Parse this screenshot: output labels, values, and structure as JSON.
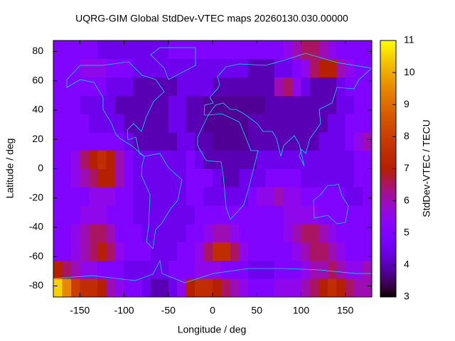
{
  "chart_data": {
    "type": "heatmap",
    "title": "UQRG-GIM Global StdDev-VTEC maps 20260130.030.00000",
    "xlabel": "Longitude / deg",
    "ylabel": "Latitude / deg",
    "colorbar_label": "StdDev-VTEC / TECU",
    "colormap": "gnuplot",
    "xlim": [
      -180,
      180
    ],
    "ylim": [
      -87.5,
      87.5
    ],
    "clim": [
      3,
      11
    ],
    "xticks": [
      -150,
      -100,
      -50,
      0,
      50,
      100,
      150
    ],
    "yticks": [
      -80,
      -60,
      -40,
      -20,
      0,
      20,
      40,
      60,
      80
    ],
    "cticks": [
      3,
      4,
      5,
      6,
      7,
      8,
      9,
      10,
      11
    ],
    "xbins": [
      -180,
      -170,
      -160,
      -150,
      -140,
      -130,
      -120,
      -110,
      -100,
      -90,
      -80,
      -70,
      -60,
      -50,
      -40,
      -30,
      -20,
      -10,
      0,
      10,
      20,
      30,
      40,
      50,
      60,
      70,
      80,
      90,
      100,
      110,
      120,
      130,
      140,
      150,
      160,
      170,
      180
    ],
    "ybins": [
      -87.5,
      -75,
      -62.5,
      -50,
      -37.5,
      -25,
      -12.5,
      0,
      12.5,
      25,
      37.5,
      50,
      62.5,
      75,
      87.5
    ],
    "values": [
      [
        10.5,
        9.5,
        8,
        7.5,
        7.5,
        7,
        6,
        5.5,
        5,
        5,
        4.5,
        4,
        4,
        4.5,
        5.5,
        7,
        7.5,
        7.5,
        7,
        6.5,
        6,
        5.5,
        5,
        5,
        5,
        5.5,
        5.5,
        5.5,
        6,
        6.5,
        7,
        7.5,
        7,
        6.5,
        6,
        6
      ],
      [
        7,
        6.5,
        6,
        5.5,
        5.5,
        5,
        5,
        5,
        4.5,
        4.5,
        4.5,
        4.5,
        4.5,
        5,
        5,
        5,
        5.5,
        5.5,
        5.5,
        5,
        5,
        5,
        4.5,
        4.5,
        4.5,
        5,
        5,
        5,
        5.5,
        6,
        6,
        6.5,
        6,
        5.5,
        5.5,
        6
      ],
      [
        5,
        5,
        5.5,
        6,
        6.5,
        7,
        6.5,
        5.5,
        5,
        5,
        5,
        4.5,
        4.5,
        4.5,
        5,
        5,
        5.5,
        6.5,
        7.5,
        7.5,
        6.5,
        5.5,
        5,
        5,
        5,
        5,
        5,
        5.5,
        6,
        6.5,
        6.5,
        6,
        5.5,
        5,
        5,
        5
      ],
      [
        5,
        5,
        5.5,
        6,
        6.5,
        6.5,
        6,
        5,
        5,
        5,
        4.5,
        4.5,
        4.5,
        4.5,
        4.5,
        5,
        5,
        5.5,
        6,
        6,
        5.5,
        5,
        5,
        5,
        5,
        5,
        5.5,
        6,
        6.5,
        6.5,
        6,
        5.5,
        5,
        5,
        5,
        5
      ],
      [
        5,
        5,
        5,
        5.5,
        5.5,
        5.5,
        5,
        5,
        5,
        4.5,
        4.5,
        4.5,
        4.5,
        4.5,
        4.5,
        4.5,
        5,
        5,
        5,
        5,
        5,
        5,
        5,
        5,
        5,
        5,
        5.5,
        5.5,
        5.5,
        5.5,
        5,
        5,
        5,
        5,
        5,
        5
      ],
      [
        5,
        5,
        5,
        5,
        5.5,
        5.5,
        5.5,
        5,
        5,
        4.5,
        4.5,
        4.5,
        4.5,
        4.5,
        4.5,
        5,
        5,
        4.5,
        4.5,
        4.5,
        4.5,
        4.5,
        5,
        5.5,
        5.5,
        6,
        5.5,
        5.5,
        5,
        5,
        5,
        5,
        5,
        4.5,
        4.5,
        5
      ],
      [
        5,
        5,
        5.5,
        6,
        6.5,
        7,
        7,
        6,
        5,
        4.5,
        4.5,
        4.5,
        4.5,
        4.5,
        4.5,
        5,
        5,
        5,
        4.5,
        4,
        4,
        4.5,
        4.5,
        4.5,
        5,
        5,
        5,
        5,
        4.5,
        4.5,
        4.5,
        4.5,
        4.5,
        4.5,
        5,
        5
      ],
      [
        5,
        5,
        5.5,
        6.5,
        7,
        7.5,
        7,
        6,
        5,
        4.5,
        4.5,
        4.5,
        4.5,
        4.5,
        4.5,
        5,
        4.5,
        4,
        4,
        4,
        4,
        4,
        4,
        4.5,
        4.5,
        4.5,
        4.5,
        4.5,
        4.5,
        4.5,
        4.5,
        4.5,
        4.5,
        4.5,
        5,
        5
      ],
      [
        5,
        5,
        5,
        5,
        5,
        5,
        5,
        5,
        4.5,
        4,
        4,
        4,
        4,
        4,
        4.5,
        4.5,
        4,
        4,
        3.8,
        3.8,
        3.8,
        3.8,
        4,
        4,
        4,
        4,
        4,
        4,
        4,
        4,
        4.5,
        4.5,
        4.5,
        5,
        5.5,
        6
      ],
      [
        5,
        5,
        5,
        5,
        4.5,
        4.5,
        4.5,
        4.5,
        4,
        4,
        4,
        4,
        4,
        4.5,
        4.5,
        4,
        4,
        3.8,
        3.8,
        3.8,
        3.8,
        3.8,
        4,
        4,
        4,
        4,
        4,
        4,
        4,
        4,
        4,
        4.5,
        4.5,
        5,
        5,
        5
      ],
      [
        5,
        5,
        5,
        4.5,
        4.5,
        4.5,
        4.5,
        4,
        4,
        4,
        4,
        4,
        4,
        4.5,
        4.5,
        4,
        4,
        3.8,
        3.8,
        3.8,
        3.8,
        3.8,
        3.8,
        3.8,
        4,
        4,
        4,
        4,
        4,
        4,
        4,
        4,
        4.5,
        4.5,
        5,
        5
      ],
      [
        5,
        5,
        5,
        5,
        5,
        5,
        4.5,
        4.5,
        4.5,
        4,
        4,
        4,
        4,
        4,
        4.5,
        4.5,
        4.5,
        4.5,
        4,
        4,
        4,
        4,
        4,
        4,
        4,
        6,
        6.5,
        5.5,
        4.5,
        4,
        4,
        4,
        4.5,
        5,
        5,
        5
      ],
      [
        5,
        5,
        5,
        5.5,
        5.5,
        5.5,
        5,
        5,
        5,
        4.5,
        4.5,
        4.5,
        4.5,
        4.5,
        4.5,
        4.5,
        4.5,
        4.5,
        4.5,
        4.5,
        4.5,
        4.5,
        4,
        4,
        4,
        4.5,
        4.5,
        5,
        5.5,
        6.5,
        7,
        7,
        6,
        5.5,
        5,
        5
      ],
      [
        5,
        5,
        5,
        5,
        5,
        4.5,
        4.5,
        4.5,
        4.5,
        4.5,
        4.5,
        4.5,
        4.5,
        5,
        5,
        5,
        5,
        5,
        5,
        5,
        5,
        5,
        5,
        5,
        5,
        5,
        5.5,
        6,
        6.5,
        6.5,
        6,
        5.5,
        5,
        5,
        5,
        5
      ]
    ]
  }
}
